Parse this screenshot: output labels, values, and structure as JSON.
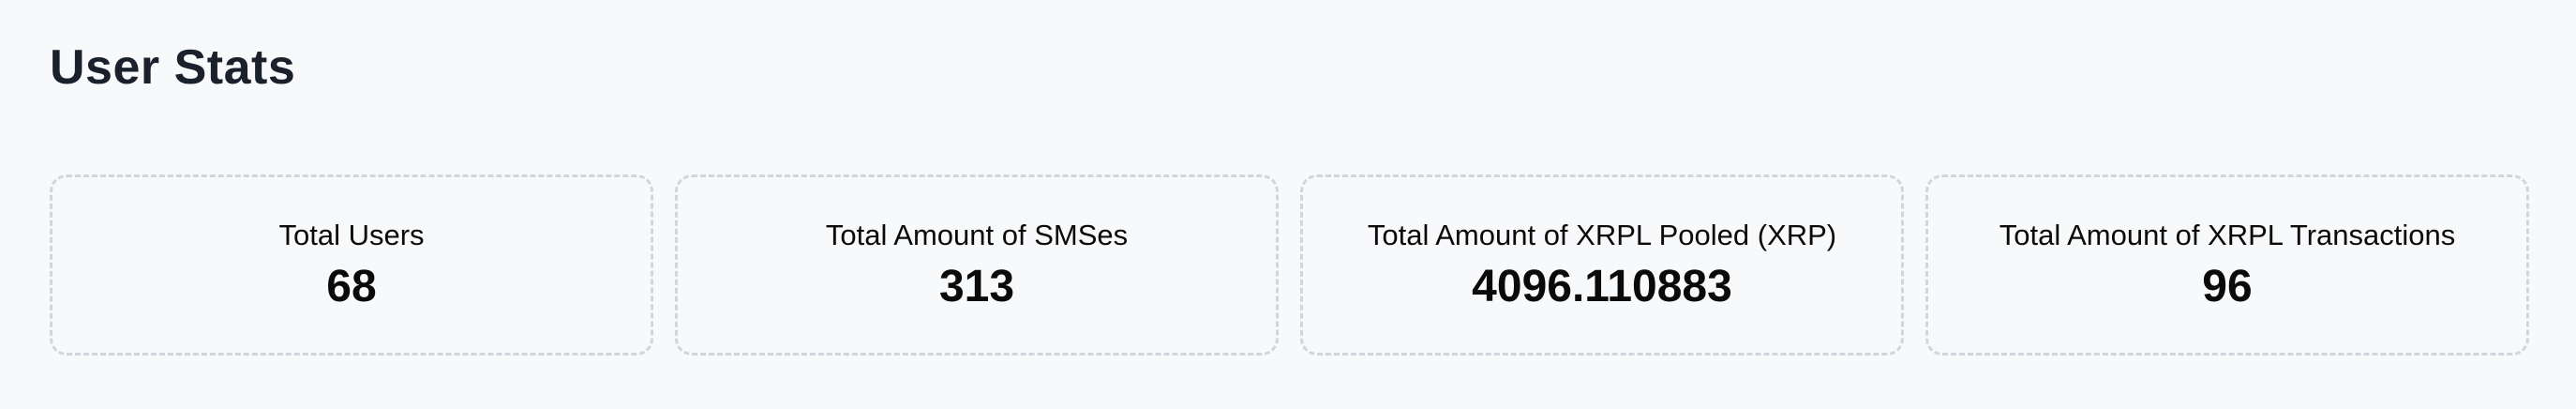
{
  "page": {
    "title": "User Stats"
  },
  "colors": {
    "background": "#f8f9fb",
    "heading_text": "#1a202c",
    "card_border": "#d3d5dc",
    "stat_text": "#0a0a0a"
  },
  "stats": [
    {
      "label": "Total Users",
      "value": "68"
    },
    {
      "label": "Total Amount of SMSes",
      "value": "313"
    },
    {
      "label": "Total Amount of XRPL Pooled (XRP)",
      "value": "4096.110883"
    },
    {
      "label": "Total Amount of XRPL Transactions",
      "value": "96"
    }
  ]
}
